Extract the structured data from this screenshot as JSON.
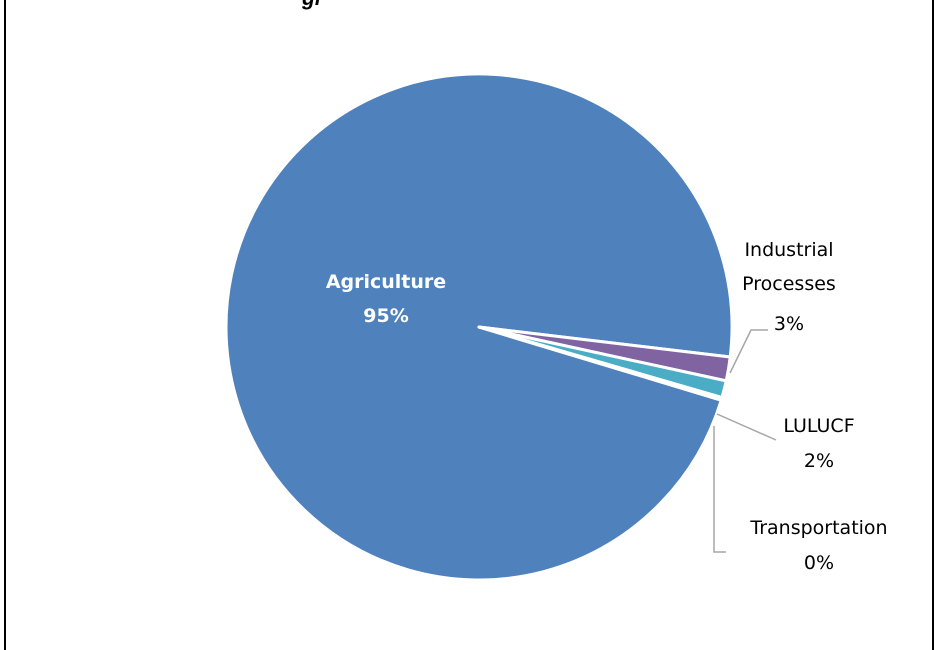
{
  "chart_data": {
    "type": "pie",
    "title": "",
    "title_visible_fragment": "gi",
    "slices": [
      {
        "name": "Agriculture",
        "value": 95,
        "label": "95%",
        "color": "#4F81BD",
        "label_color": "#FFFFFF"
      },
      {
        "name": "Industrial Processes",
        "value": 3,
        "label": "3%",
        "color": "#8064A2",
        "label_color": "#000000"
      },
      {
        "name": "LULUCF",
        "value": 2,
        "label": "2%",
        "color": "#4BACC6",
        "label_color": "#000000"
      },
      {
        "name": "Transportation",
        "value": 0,
        "label": "0%",
        "color": "#F79646",
        "label_color": "#000000"
      }
    ],
    "legend": "none",
    "leader_line_color": "#A6A6A6"
  }
}
